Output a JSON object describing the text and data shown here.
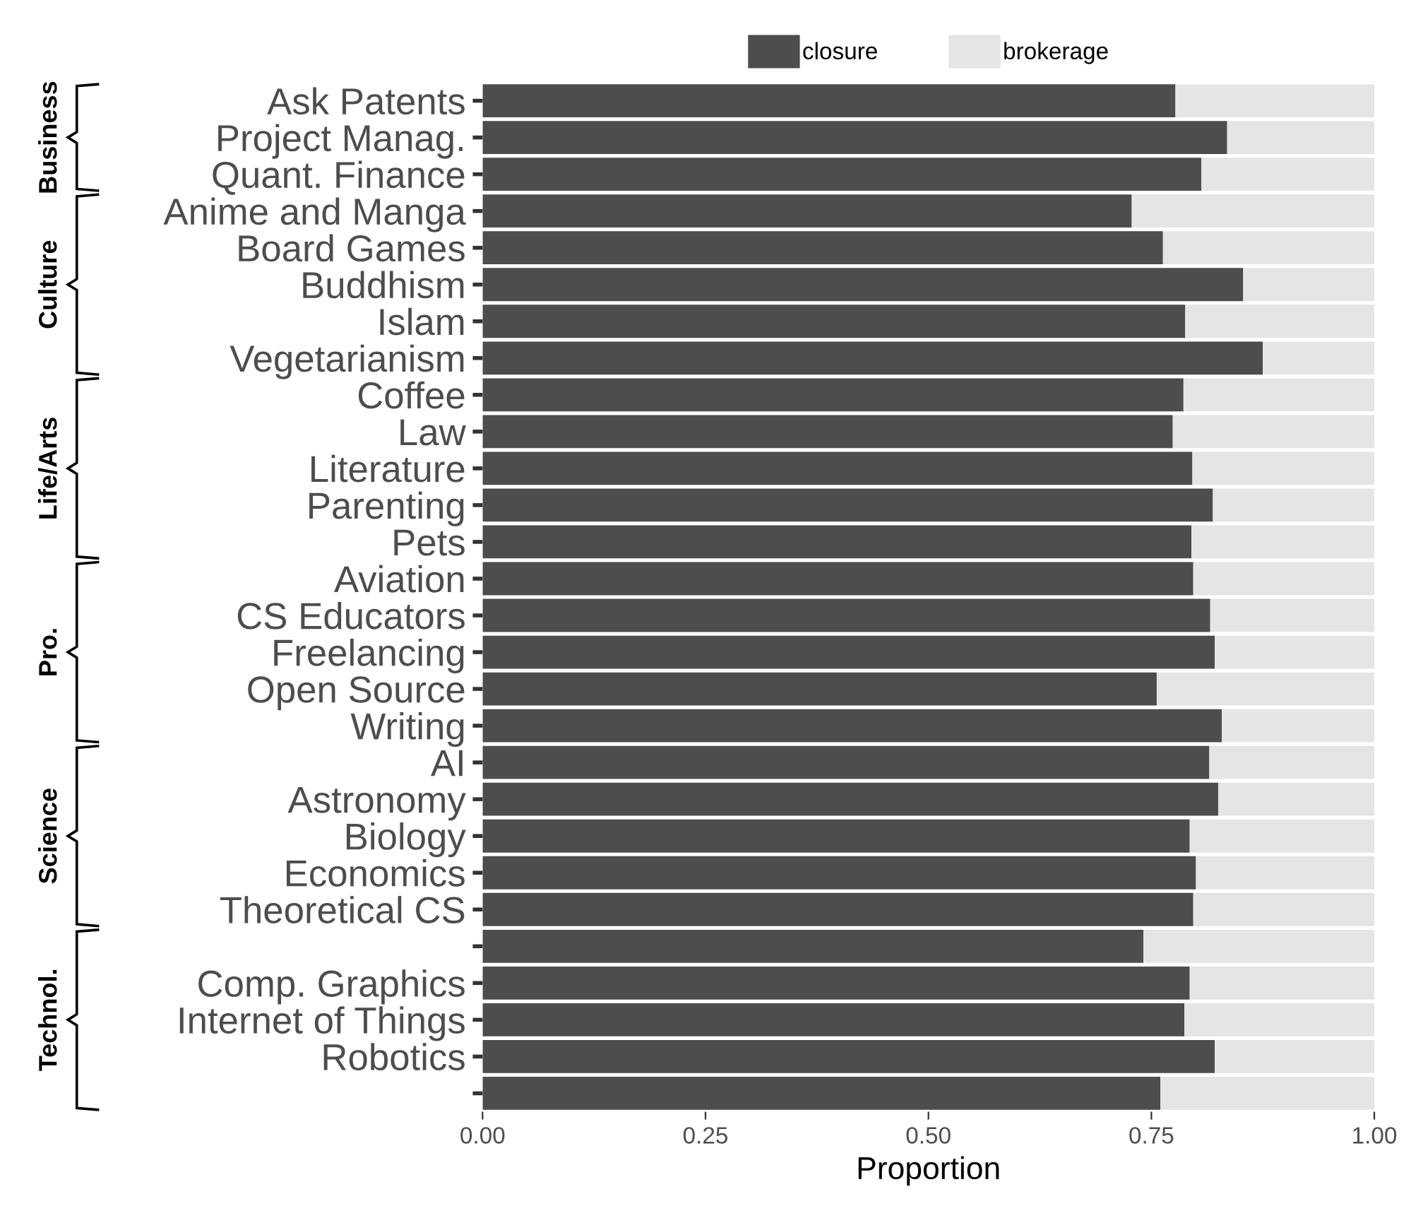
{
  "chart_data": {
    "type": "bar",
    "orientation": "horizontal",
    "stacked": true,
    "categories": [
      "Ask Patents",
      "Project Manag.",
      "Quant. Finance",
      "Anime and Manga",
      "Board Games",
      "Buddhism",
      "Islam",
      "Vegetarianism",
      "Coffee",
      "Law",
      "Literature",
      "Parenting",
      "Pets",
      "Aviation",
      "CS Educators",
      "Freelancing",
      "Open Source",
      "Writing",
      "AI",
      "Astronomy",
      "Biology",
      "Economics",
      "Theoretical CS",
      null,
      "Comp. Graphics",
      "Internet of Things",
      "Robotics",
      null
    ],
    "series": [
      {
        "name": "closure",
        "color": "#4d4d4d",
        "values": [
          0.777,
          0.835,
          0.806,
          0.728,
          0.763,
          0.853,
          0.788,
          0.875,
          0.786,
          0.774,
          0.796,
          0.819,
          0.795,
          0.797,
          0.816,
          0.821,
          0.756,
          0.829,
          0.815,
          0.825,
          0.793,
          0.8,
          0.797,
          0.741,
          0.793,
          0.787,
          0.821,
          0.76
        ]
      },
      {
        "name": "brokerage",
        "color": "#e5e5e5",
        "values": [
          0.223,
          0.165,
          0.194,
          0.272,
          0.237,
          0.147,
          0.212,
          0.125,
          0.214,
          0.226,
          0.204,
          0.181,
          0.205,
          0.203,
          0.184,
          0.179,
          0.244,
          0.171,
          0.185,
          0.175,
          0.207,
          0.2,
          0.203,
          0.259,
          0.207,
          0.213,
          0.179,
          0.24
        ]
      }
    ],
    "xlim": [
      0,
      1
    ],
    "xticks": [
      {
        "value": 0,
        "label": "0.00"
      },
      {
        "value": 0.25,
        "label": "0.25"
      },
      {
        "value": 0.5,
        "label": "0.50"
      },
      {
        "value": 0.75,
        "label": "0.75"
      },
      {
        "value": 1,
        "label": "1.00"
      }
    ],
    "xlabel": "Proportion",
    "legend": "top",
    "grid": false,
    "annotations": [
      "Business",
      "Culture",
      "Life/Arts",
      "Pro.",
      "Science",
      "Technol."
    ]
  }
}
